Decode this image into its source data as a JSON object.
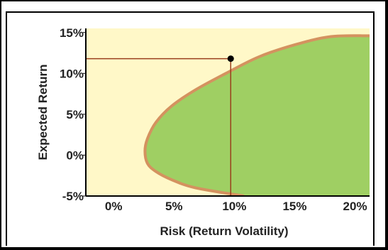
{
  "colors": {
    "background": "#fff8c8",
    "frontier_fill": "#9fcf63",
    "frontier_edge": "#d4925f",
    "guide_line": "#9a3f1c",
    "point": "#000000"
  },
  "chart_data": {
    "type": "area",
    "title": "",
    "xlabel": "Risk (Return Volatility)",
    "ylabel": "Expected Return",
    "xlim": [
      -2.3,
      21.2
    ],
    "ylim": [
      -5,
      15.5
    ],
    "x_ticks": [
      "0%",
      "5%",
      "10%",
      "15%",
      "20%"
    ],
    "y_ticks": [
      "15%",
      "10%",
      "5%",
      "0%",
      "-5%"
    ],
    "x_tick_values": [
      0,
      5,
      10,
      15,
      20
    ],
    "y_tick_values": [
      15,
      10,
      5,
      0,
      -5
    ],
    "grid": false,
    "legend": "none",
    "frontier": {
      "x": [
        10.8,
        6.8,
        4.8,
        3.5,
        2.8,
        2.6,
        2.8,
        3.5,
        4.8,
        6.8,
        9.3,
        12.0,
        15.0,
        18.0,
        21.2
      ],
      "y": [
        -5.0,
        -4.0,
        -3.0,
        -2.0,
        -1.0,
        0.5,
        2.0,
        4.0,
        6.0,
        8.0,
        10.0,
        12.0,
        13.5,
        14.5,
        14.6
      ]
    },
    "selected_point": {
      "x": 9.7,
      "y": 11.8
    }
  }
}
